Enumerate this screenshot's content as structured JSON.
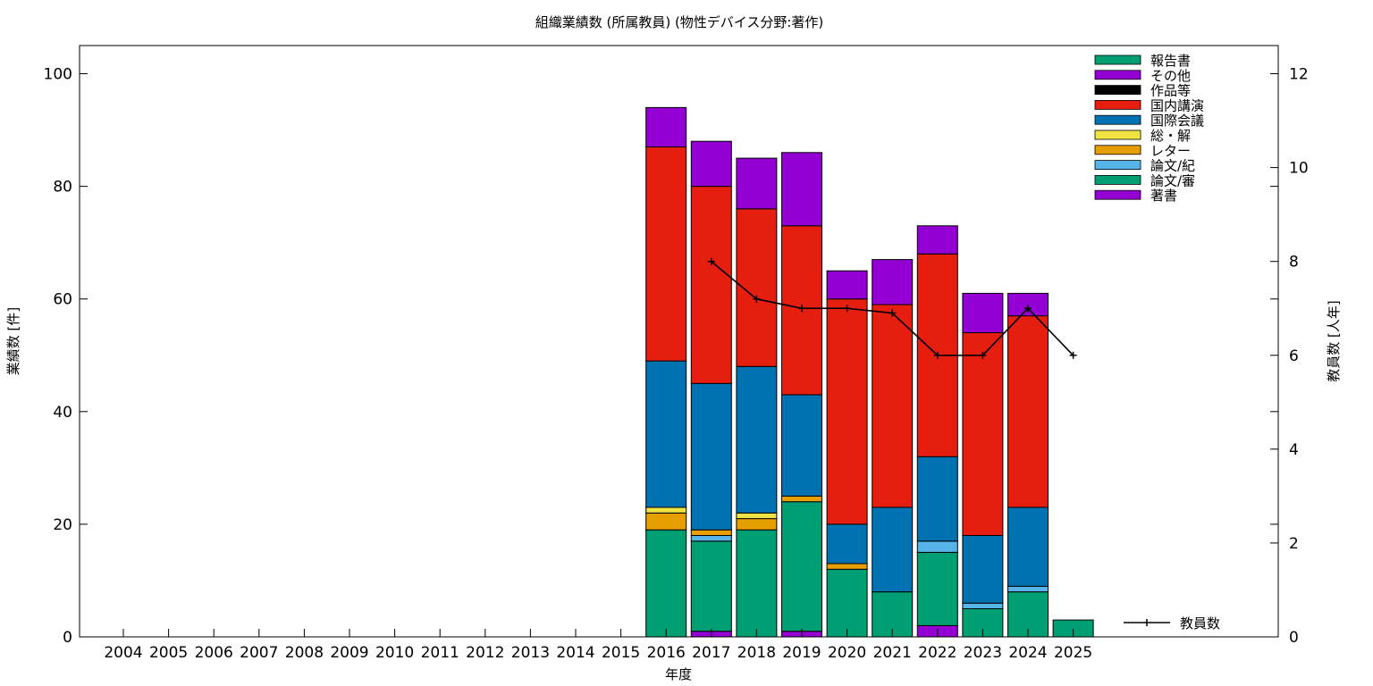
{
  "chart_data": {
    "type": "bar",
    "stacked": true,
    "title": "組織業績数 (所属教員) (物性デバイス分野:著作)",
    "xlabel": "年度",
    "ylabel": "業績数 [件]",
    "y2label": "教員数 [人年]",
    "categories": [
      "2004",
      "2005",
      "2006",
      "2007",
      "2008",
      "2009",
      "2010",
      "2011",
      "2012",
      "2013",
      "2014",
      "2015",
      "2016",
      "2017",
      "2018",
      "2019",
      "2020",
      "2021",
      "2022",
      "2023",
      "2024",
      "2025"
    ],
    "ylim": [
      0,
      105
    ],
    "yticks": [
      0,
      20,
      40,
      60,
      80,
      100
    ],
    "y2lim": [
      0,
      12.6
    ],
    "y2ticks": [
      0,
      2,
      4,
      6,
      8,
      10,
      12
    ],
    "grid": false,
    "legend_position": "top-right",
    "series": [
      {
        "name": "著書",
        "color": "#9400d3",
        "values": [
          0,
          0,
          0,
          0,
          0,
          0,
          0,
          0,
          0,
          0,
          0,
          0,
          0,
          1,
          0,
          1,
          0,
          0,
          2,
          0,
          0,
          0
        ]
      },
      {
        "name": "論文/審",
        "color": "#009e73",
        "values": [
          0,
          0,
          0,
          0,
          0,
          0,
          0,
          0,
          0,
          0,
          0,
          0,
          19,
          16,
          19,
          23,
          12,
          8,
          13,
          5,
          8,
          3
        ]
      },
      {
        "name": "論文/紀",
        "color": "#56b4e9",
        "values": [
          0,
          0,
          0,
          0,
          0,
          0,
          0,
          0,
          0,
          0,
          0,
          0,
          0,
          1,
          0,
          0,
          0,
          0,
          2,
          1,
          1,
          0
        ]
      },
      {
        "name": "レター",
        "color": "#e69f00",
        "values": [
          0,
          0,
          0,
          0,
          0,
          0,
          0,
          0,
          0,
          0,
          0,
          0,
          3,
          1,
          2,
          1,
          1,
          0,
          0,
          0,
          0,
          0
        ]
      },
      {
        "name": "総・解",
        "color": "#f0e442",
        "values": [
          0,
          0,
          0,
          0,
          0,
          0,
          0,
          0,
          0,
          0,
          0,
          0,
          1,
          0,
          1,
          0,
          0,
          0,
          0,
          0,
          0,
          0
        ]
      },
      {
        "name": "国際会議",
        "color": "#0072b2",
        "values": [
          0,
          0,
          0,
          0,
          0,
          0,
          0,
          0,
          0,
          0,
          0,
          0,
          26,
          26,
          26,
          18,
          7,
          15,
          15,
          12,
          14,
          0
        ]
      },
      {
        "name": "国内講演",
        "color": "#e51e10",
        "values": [
          0,
          0,
          0,
          0,
          0,
          0,
          0,
          0,
          0,
          0,
          0,
          0,
          38,
          35,
          28,
          30,
          40,
          36,
          36,
          36,
          34,
          0
        ]
      },
      {
        "name": "作品等",
        "color": "#000000",
        "values": [
          0,
          0,
          0,
          0,
          0,
          0,
          0,
          0,
          0,
          0,
          0,
          0,
          0,
          0,
          0,
          0,
          0,
          0,
          0,
          0,
          0,
          0
        ]
      },
      {
        "name": "その他",
        "color": "#9400d3",
        "values": [
          0,
          0,
          0,
          0,
          0,
          0,
          0,
          0,
          0,
          0,
          0,
          0,
          7,
          8,
          9,
          13,
          5,
          8,
          5,
          7,
          4,
          0
        ]
      },
      {
        "name": "報告書",
        "color": "#009e73",
        "values": [
          0,
          0,
          0,
          0,
          0,
          0,
          0,
          0,
          0,
          0,
          0,
          0,
          0,
          0,
          0,
          0,
          0,
          0,
          0,
          0,
          0,
          0
        ]
      }
    ],
    "line_series": {
      "name": "教員数",
      "axis": "y2",
      "x": [
        "2017",
        "2018",
        "2019",
        "2020",
        "2021",
        "2022",
        "2023",
        "2024",
        "2025"
      ],
      "values": [
        8,
        7.2,
        7.0,
        7.0,
        6.9,
        6.0,
        6.0,
        7.0,
        6.0
      ]
    }
  }
}
